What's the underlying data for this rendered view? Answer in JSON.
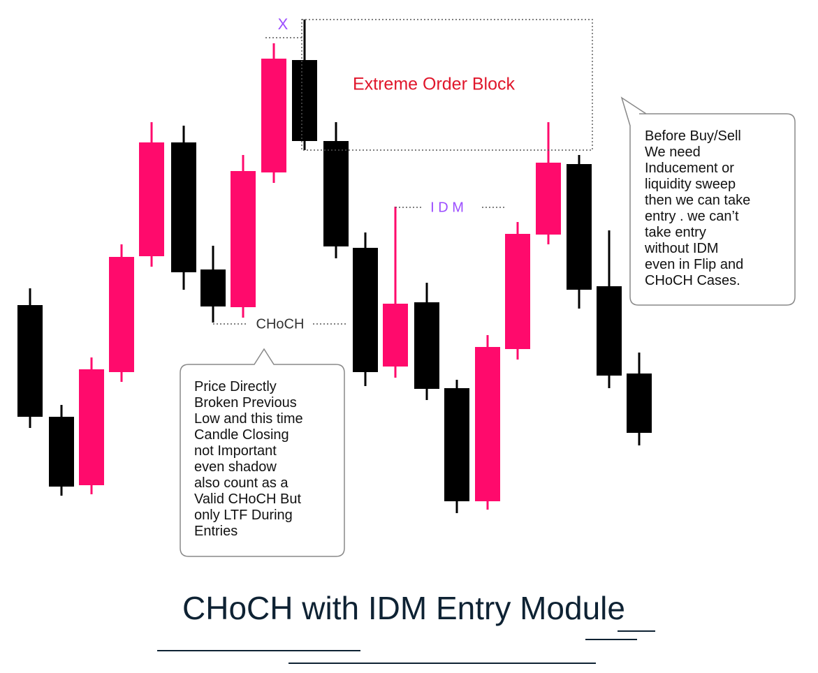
{
  "annotations": {
    "x_marker": "X",
    "order_block": "Extreme Order Block",
    "idm": "I D M",
    "choch": "CHoCH"
  },
  "bubble_left": {
    "lines": [
      "Price Directly",
      "Broken Previous",
      "Low and this time",
      "Candle Closing",
      "not Important",
      "even shadow",
      "also count as a",
      "Valid CHoCH But",
      "only LTF During",
      "Entries"
    ]
  },
  "bubble_right": {
    "lines": [
      "Before Buy/Sell",
      "We need",
      "Inducement or",
      "liquidity sweep",
      "then we can take",
      "entry . we can’t",
      "take entry",
      "without IDM",
      "even in Flip and",
      "CHoCH Cases."
    ]
  },
  "footer": {
    "title": "CHoCH with IDM  Entry Module"
  }
}
